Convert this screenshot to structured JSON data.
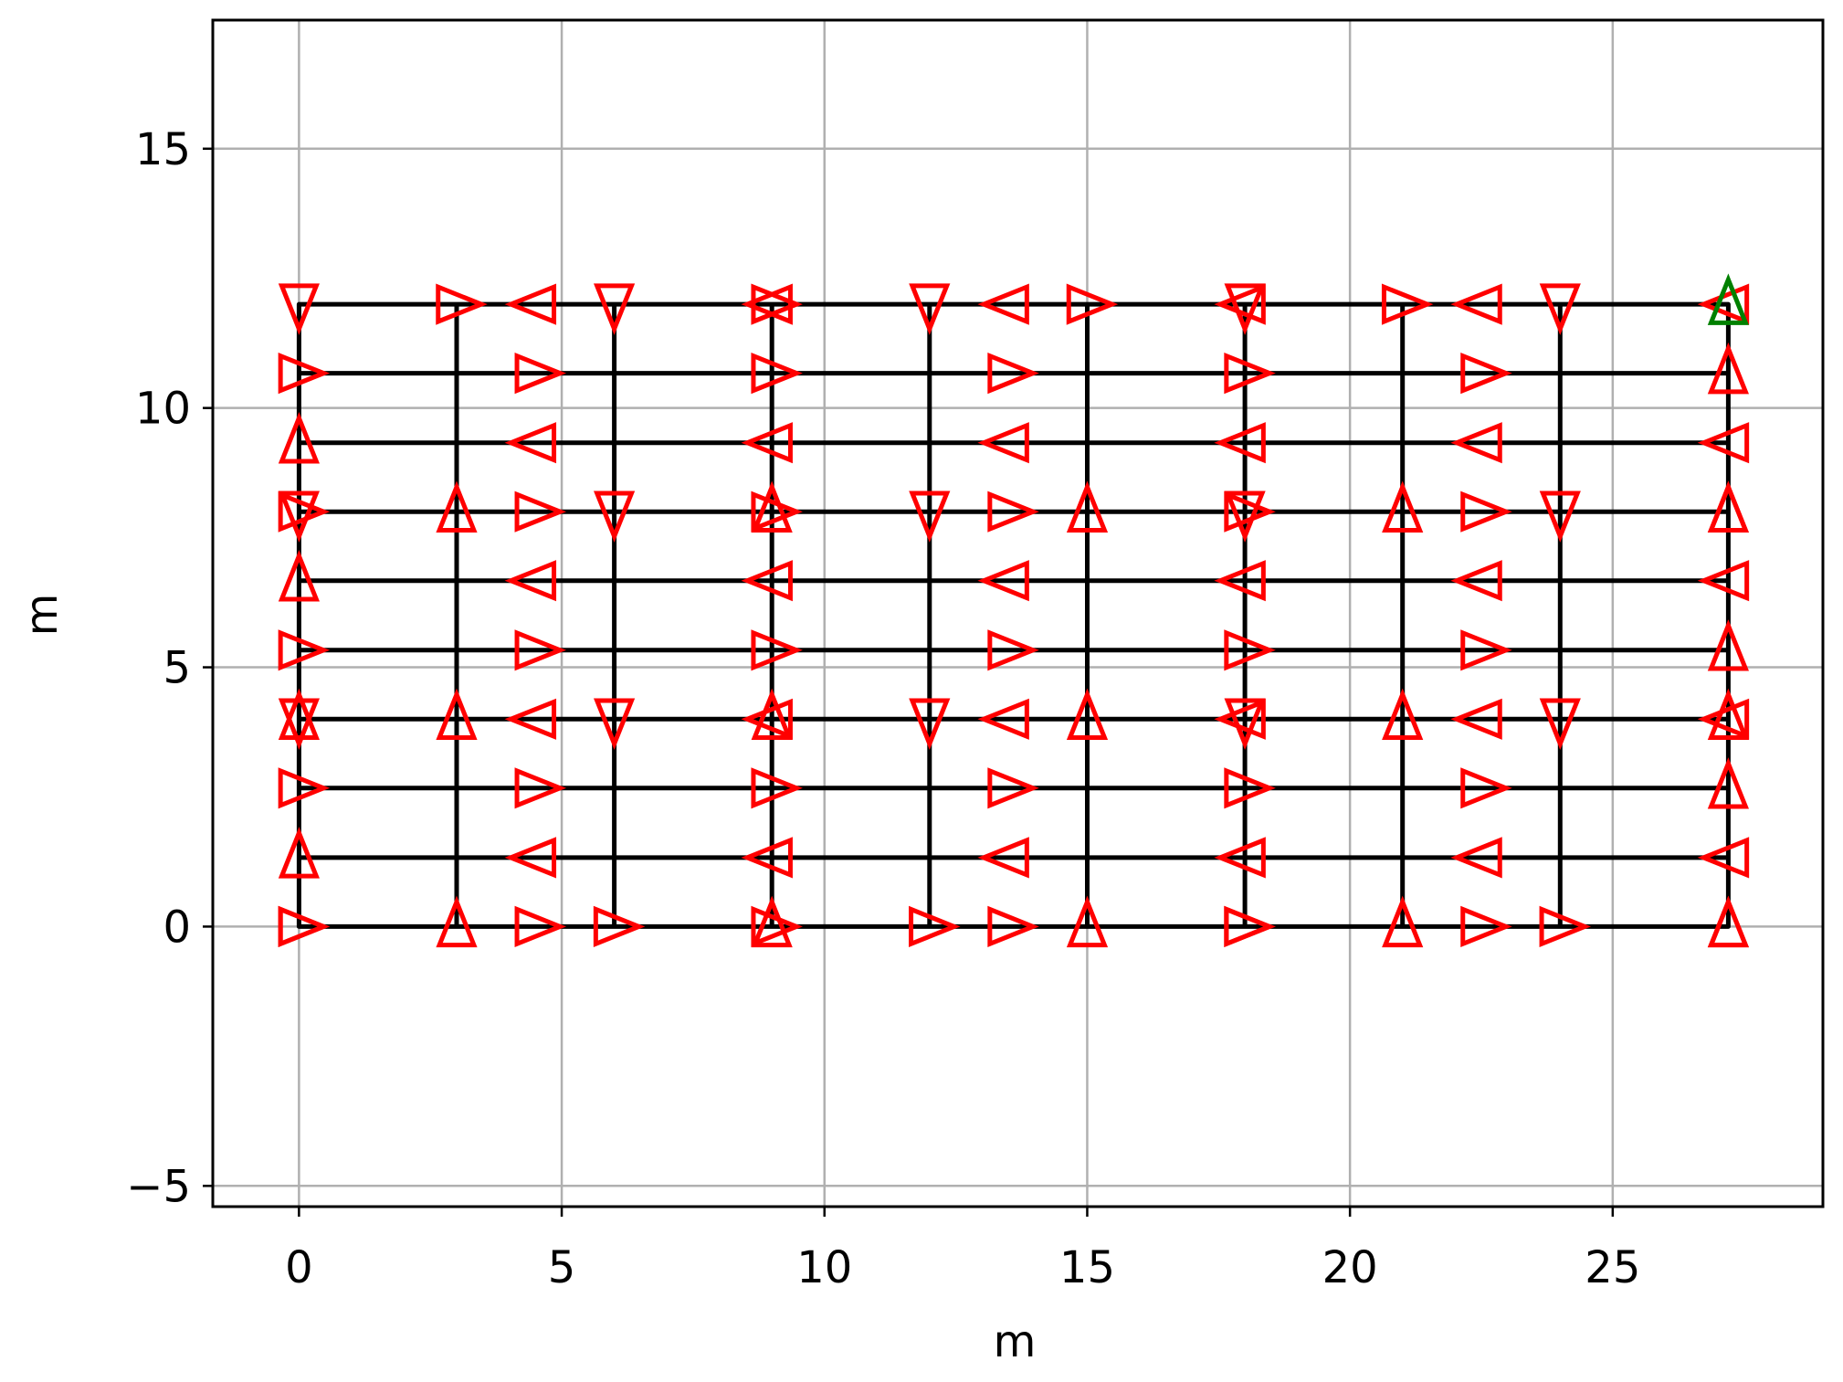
{
  "chart_data": {
    "type": "line",
    "xlabel": "m",
    "ylabel": "m",
    "xlim": [
      -1.64,
      29.0
    ],
    "ylim": [
      -5.4,
      17.48
    ],
    "xticks": [
      0,
      5,
      10,
      15,
      20,
      25
    ],
    "yticks": [
      {
        "value": -5,
        "label": "−5"
      },
      0,
      5,
      10,
      15
    ],
    "grid": true,
    "color": "#000000",
    "marker_color": "#ff0000",
    "end_marker_color": "#008000",
    "x": [
      0,
      4.5,
      9,
      13.5,
      18,
      22.5,
      27.2,
      27.2,
      22.5,
      18,
      13.5,
      9,
      4.5,
      0,
      0,
      4.5,
      9,
      13.5,
      18,
      22.5,
      27.2,
      27.2,
      22.5,
      18,
      13.5,
      9,
      4.5,
      0,
      0,
      4.5,
      9,
      13.5,
      18,
      22.5,
      27.2,
      27.2,
      22.5,
      18,
      13.5,
      9,
      4.5,
      0,
      0,
      4.5,
      9,
      13.5,
      18,
      22.5,
      27.2,
      27.2,
      22.5,
      18,
      13.5,
      9,
      4.5,
      0,
      0,
      4.5,
      9,
      13.5,
      18,
      22.5,
      27.2,
      27.2,
      22.5,
      18,
      13.5,
      9,
      4.5,
      0,
      0,
      0,
      0,
      3,
      3,
      3,
      3,
      6,
      6,
      6,
      6,
      9,
      9,
      9,
      9,
      12,
      12,
      12,
      12,
      15,
      15,
      15,
      15,
      18,
      18,
      18,
      18,
      21,
      21,
      21,
      21,
      24,
      24,
      24,
      24,
      27.2,
      27.2,
      27.2,
      27.2
    ],
    "y": [
      0,
      0,
      0,
      0,
      0,
      0,
      0,
      1.33,
      1.33,
      1.33,
      1.33,
      1.33,
      1.33,
      1.33,
      2.67,
      2.67,
      2.67,
      2.67,
      2.67,
      2.67,
      2.67,
      4,
      4,
      4,
      4,
      4,
      4,
      4,
      5.33,
      5.33,
      5.33,
      5.33,
      5.33,
      5.33,
      5.33,
      6.67,
      6.67,
      6.67,
      6.67,
      6.67,
      6.67,
      6.67,
      8,
      8,
      8,
      8,
      8,
      8,
      8,
      9.33,
      9.33,
      9.33,
      9.33,
      9.33,
      9.33,
      9.33,
      10.67,
      10.67,
      10.67,
      10.67,
      10.67,
      10.67,
      10.67,
      12,
      12,
      12,
      12,
      12,
      12,
      12,
      8,
      4,
      0,
      0,
      4,
      8,
      12,
      12,
      8,
      4,
      0,
      0,
      4,
      8,
      12,
      12,
      8,
      4,
      0,
      0,
      4,
      8,
      12,
      12,
      8,
      4,
      0,
      0,
      4,
      8,
      12,
      12,
      8,
      4,
      0,
      0,
      4,
      8,
      12
    ]
  }
}
